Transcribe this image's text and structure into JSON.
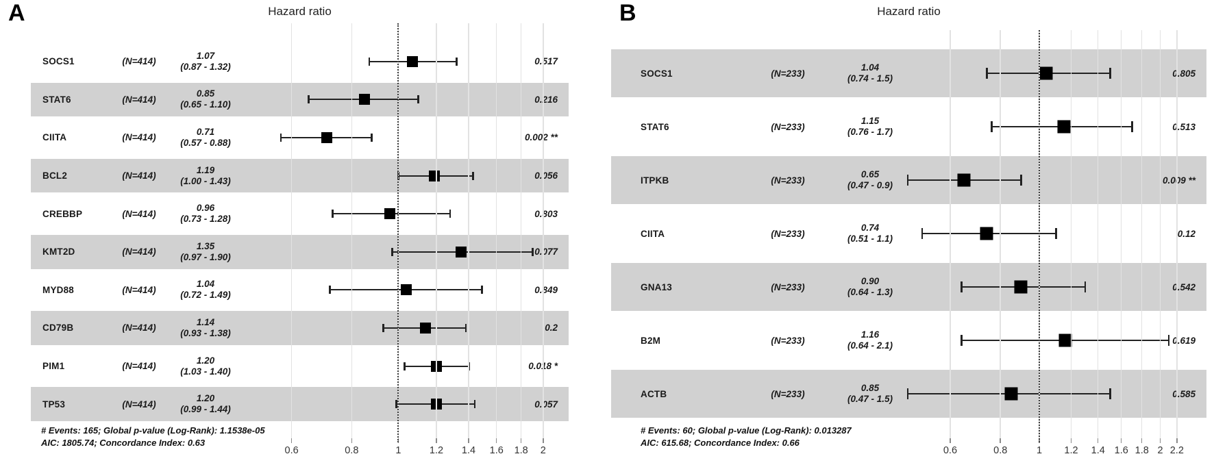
{
  "colors": {
    "background": "#ffffff",
    "shaded_band": "#d3d3d3",
    "gridline": "#e2e2e2",
    "marker": "#000000",
    "reference_line": "#3c3c3c"
  },
  "chart_data": [
    {
      "type": "scatter",
      "subtype": "forest-plot",
      "panel_label": "A",
      "title": "Hazard ratio",
      "xscale": "log",
      "xlabel": "",
      "plot_xlim": [
        0.5,
        2.13
      ],
      "xticks": [
        "0.6",
        "0.8",
        "1",
        "1.2",
        "1.4",
        "1.6",
        "1.8",
        "2"
      ],
      "xtick_values": [
        0.6,
        0.8,
        1,
        1.2,
        1.4,
        1.6,
        1.8,
        2
      ],
      "reference_line": 1,
      "rows": [
        {
          "gene": "SOCS1",
          "n_text": "(N=414)",
          "hr": 1.07,
          "hr_text": "1.07",
          "ci_low": 0.87,
          "ci_high": 1.32,
          "ci_text": "(0.87 - 1.32)",
          "p_text": "0.517",
          "shaded": false
        },
        {
          "gene": "STAT6",
          "n_text": "(N=414)",
          "hr": 0.85,
          "hr_text": "0.85",
          "ci_low": 0.65,
          "ci_high": 1.1,
          "ci_text": "(0.65 - 1.10)",
          "p_text": "0.216",
          "shaded": true
        },
        {
          "gene": "CIITA",
          "n_text": "(N=414)",
          "hr": 0.71,
          "hr_text": "0.71",
          "ci_low": 0.57,
          "ci_high": 0.88,
          "ci_text": "(0.57 - 0.88)",
          "p_text": "0.002 **",
          "shaded": false
        },
        {
          "gene": "BCL2",
          "n_text": "(N=414)",
          "hr": 1.19,
          "hr_text": "1.19",
          "ci_low": 1.0,
          "ci_high": 1.43,
          "ci_text": "(1.00 - 1.43)",
          "p_text": "0.056",
          "shaded": true
        },
        {
          "gene": "CREBBP",
          "n_text": "(N=414)",
          "hr": 0.96,
          "hr_text": "0.96",
          "ci_low": 0.73,
          "ci_high": 1.28,
          "ci_text": "(0.73 - 1.28)",
          "p_text": "0.803",
          "shaded": false
        },
        {
          "gene": "KMT2D",
          "n_text": "(N=414)",
          "hr": 1.35,
          "hr_text": "1.35",
          "ci_low": 0.97,
          "ci_high": 1.9,
          "ci_text": "(0.97 - 1.90)",
          "p_text": "0.077",
          "shaded": true
        },
        {
          "gene": "MYD88",
          "n_text": "(N=414)",
          "hr": 1.04,
          "hr_text": "1.04",
          "ci_low": 0.72,
          "ci_high": 1.49,
          "ci_text": "(0.72 - 1.49)",
          "p_text": "0.849",
          "shaded": false
        },
        {
          "gene": "CD79B",
          "n_text": "(N=414)",
          "hr": 1.14,
          "hr_text": "1.14",
          "ci_low": 0.93,
          "ci_high": 1.38,
          "ci_text": "(0.93 - 1.38)",
          "p_text": "0.2",
          "shaded": true
        },
        {
          "gene": "PIM1",
          "n_text": "(N=414)",
          "hr": 1.2,
          "hr_text": "1.20",
          "ci_low": 1.03,
          "ci_high": 1.4,
          "ci_text": "(1.03 - 1.40)",
          "p_text": "0.018 *",
          "shaded": false
        },
        {
          "gene": "TP53",
          "n_text": "(N=414)",
          "hr": 1.2,
          "hr_text": "1.20",
          "ci_low": 0.99,
          "ci_high": 1.44,
          "ci_text": "(0.99 - 1.44)",
          "p_text": "0.057",
          "shaded": true
        }
      ],
      "footnote_lines": [
        "# Events: 165; Global p-value (Log-Rank): 1.1538e-05",
        "AIC: 1805.74; Concordance Index: 0.63"
      ]
    },
    {
      "type": "scatter",
      "subtype": "forest-plot",
      "panel_label": "B",
      "title": "Hazard ratio",
      "xscale": "log",
      "xlabel": "",
      "plot_xlim": [
        0.41,
        2.4
      ],
      "xticks": [
        "0.6",
        "0.8",
        "1",
        "1.2",
        "1.4",
        "1.6",
        "1.8",
        "2",
        "2.2"
      ],
      "xtick_values": [
        0.6,
        0.8,
        1,
        1.2,
        1.4,
        1.6,
        1.8,
        2,
        2.2
      ],
      "reference_line": 1,
      "rows": [
        {
          "gene": "SOCS1",
          "n_text": "(N=233)",
          "hr": 1.04,
          "hr_text": "1.04",
          "ci_low": 0.74,
          "ci_high": 1.5,
          "ci_text": "(0.74 - 1.5)",
          "p_text": "0.805",
          "shaded": true
        },
        {
          "gene": "STAT6",
          "n_text": "(N=233)",
          "hr": 1.15,
          "hr_text": "1.15",
          "ci_low": 0.76,
          "ci_high": 1.7,
          "ci_text": "(0.76 - 1.7)",
          "p_text": "0.513",
          "shaded": false
        },
        {
          "gene": "ITPKB",
          "n_text": "(N=233)",
          "hr": 0.65,
          "hr_text": "0.65",
          "ci_low": 0.47,
          "ci_high": 0.9,
          "ci_text": "(0.47 - 0.9)",
          "p_text": "0.009 **",
          "shaded": true
        },
        {
          "gene": "CIITA",
          "n_text": "(N=233)",
          "hr": 0.74,
          "hr_text": "0.74",
          "ci_low": 0.51,
          "ci_high": 1.1,
          "ci_text": "(0.51 - 1.1)",
          "p_text": "0.12",
          "shaded": false
        },
        {
          "gene": "GNA13",
          "n_text": "(N=233)",
          "hr": 0.9,
          "hr_text": "0.90",
          "ci_low": 0.64,
          "ci_high": 1.3,
          "ci_text": "(0.64 - 1.3)",
          "p_text": "0.542",
          "shaded": true
        },
        {
          "gene": "B2M",
          "n_text": "(N=233)",
          "hr": 1.16,
          "hr_text": "1.16",
          "ci_low": 0.64,
          "ci_high": 2.1,
          "ci_text": "(0.64 - 2.1)",
          "p_text": "0.619",
          "shaded": false
        },
        {
          "gene": "ACTB",
          "n_text": "(N=233)",
          "hr": 0.85,
          "hr_text": "0.85",
          "ci_low": 0.47,
          "ci_high": 1.5,
          "ci_text": "(0.47 - 1.5)",
          "p_text": "0.585",
          "shaded": true
        }
      ],
      "footnote_lines": [
        "# Events: 60; Global p-value (Log-Rank): 0.013287",
        "AIC: 615.68; Concordance Index: 0.66"
      ]
    }
  ]
}
